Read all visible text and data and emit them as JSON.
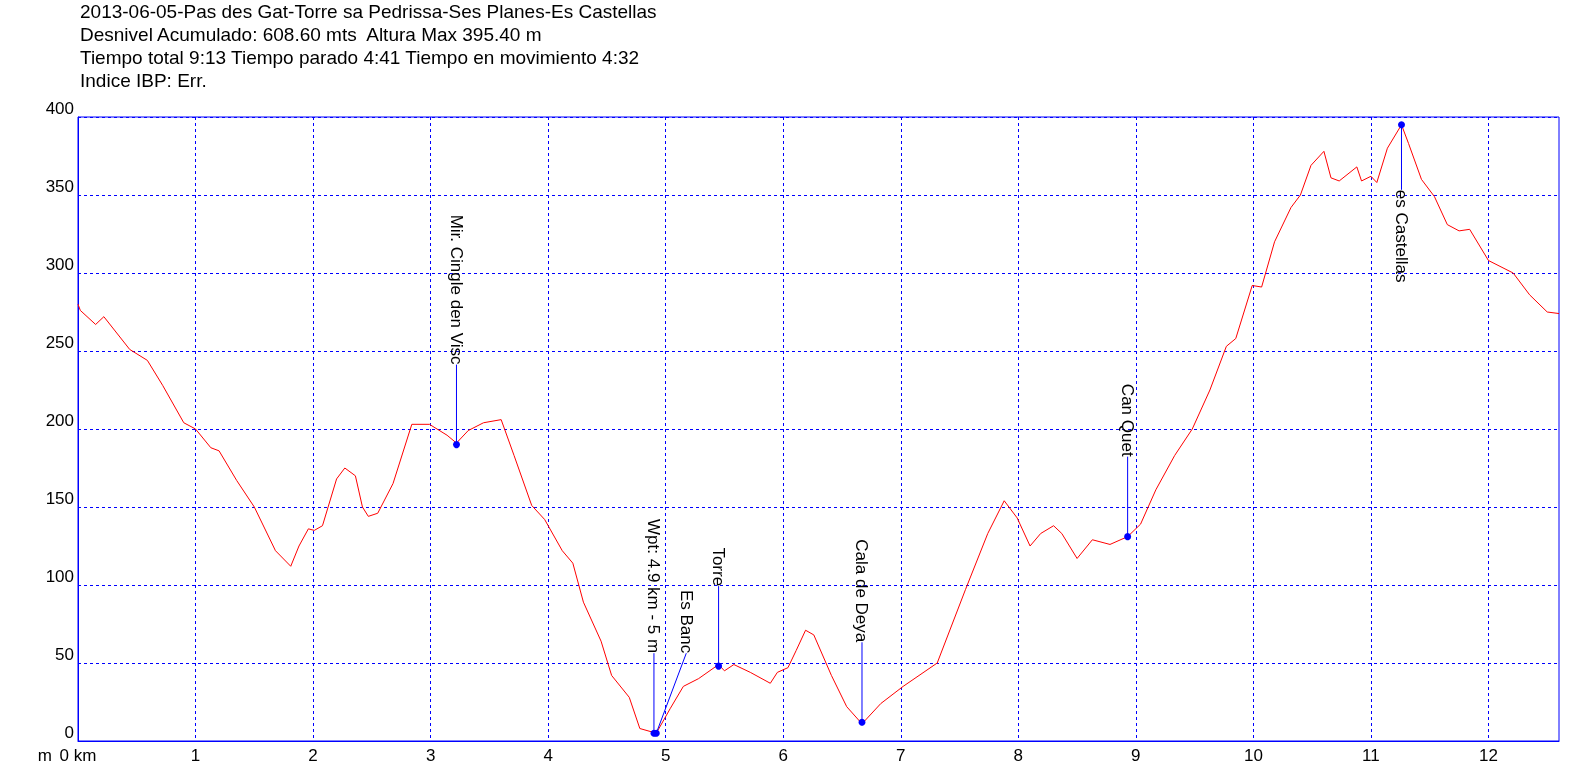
{
  "chart_data": {
    "type": "line",
    "title": "2013-06-05-Pas des Gat-Torre sa Pedrissa-Ses Planes-Es Castellas",
    "subtitle": "Desnivel Acumulado: 608.60 mts  Altura Max 395.40 m\nTiempo total 9:13 Tiempo parado 4:41 Tiempo en movimiento 4:32\nIndice IBP: Err.",
    "ylabel": "m",
    "series": [
      {
        "color": "#ff0000",
        "x": [
          0,
          0.02,
          0.15,
          0.22,
          0.44,
          0.59,
          0.72,
          0.9,
          1.0,
          1.13,
          1.2,
          1.35,
          1.5,
          1.68,
          1.81,
          1.88,
          1.96,
          2.01,
          2.08,
          2.2,
          2.27,
          2.36,
          2.42,
          2.47,
          2.55,
          2.68,
          2.84,
          2.99,
          3.14,
          3.22,
          3.32,
          3.45,
          3.6,
          3.71,
          3.86,
          3.97,
          4.12,
          4.21,
          4.3,
          4.45,
          4.54,
          4.69,
          4.78,
          4.92,
          5.04,
          5.15,
          5.28,
          5.45,
          5.5,
          5.58,
          5.72,
          5.89,
          5.95,
          6.04,
          6.11,
          6.19,
          6.26,
          6.41,
          6.54,
          6.67,
          6.83,
          7.02,
          7.31,
          7.55,
          7.74,
          7.88,
          7.99,
          8.1,
          8.19,
          8.3,
          8.37,
          8.5,
          8.63,
          8.78,
          8.93,
          9.04,
          9.17,
          9.33,
          9.48,
          9.63,
          9.77,
          9.85,
          9.99,
          10.07,
          10.18,
          10.32,
          10.4,
          10.49,
          10.6,
          10.66,
          10.73,
          10.88,
          10.92,
          11.0,
          11.05,
          11.14,
          11.26,
          11.32,
          11.43,
          11.54,
          11.65,
          11.75,
          11.84,
          12.0,
          12.21,
          12.35,
          12.5,
          12.6
        ],
        "values": [
          280,
          276,
          267,
          272,
          251,
          244,
          228,
          204,
          200,
          188,
          186,
          167,
          150,
          122,
          112,
          125,
          136,
          135,
          138,
          168,
          175,
          170,
          150,
          144,
          146,
          165,
          203,
          203,
          196,
          191,
          199,
          204,
          206,
          183,
          151,
          142,
          122,
          114,
          89,
          64,
          42,
          28,
          8,
          5,
          21,
          35,
          40,
          49,
          45,
          49,
          44,
          37,
          44,
          47,
          58,
          71,
          68,
          42,
          22,
          11,
          24,
          35,
          50,
          97,
          133,
          154,
          143,
          125,
          133,
          138,
          133,
          117,
          129,
          126,
          131,
          139,
          161,
          183,
          200,
          225,
          253,
          258,
          292,
          291,
          320,
          342,
          350,
          369,
          378,
          361,
          359,
          368,
          359,
          362,
          358,
          380,
          395,
          383,
          360,
          349,
          331,
          327,
          328,
          308,
          300,
          286,
          275,
          274
        ]
      }
    ],
    "annotations": [
      {
        "text": "Mir. Cingle den Visc",
        "x": 3.22,
        "y": 190
      },
      {
        "text": "Wpt: 4.9 km - 5 m",
        "x": 4.9,
        "y": 5
      },
      {
        "text": "Es Banc",
        "x": 4.92,
        "y": 5
      },
      {
        "text": "Torre",
        "x": 5.45,
        "y": 48
      },
      {
        "text": "Cala de Deya",
        "x": 6.67,
        "y": 12
      },
      {
        "text": "Can Quet",
        "x": 8.93,
        "y": 131
      },
      {
        "text": "es Castellas",
        "x": 11.26,
        "y": 395
      }
    ],
    "xlim": [
      0,
      12.6
    ],
    "xticks": [
      {
        "value": 0,
        "label": "0 km"
      },
      1,
      2,
      3,
      4,
      5,
      6,
      7,
      8,
      9,
      10,
      11,
      12
    ],
    "ylim": [
      0,
      400
    ],
    "yticks": [
      0,
      50,
      100,
      150,
      200,
      250,
      300,
      350,
      400
    ],
    "grid": true,
    "marker": "none",
    "line_style": "solid"
  }
}
